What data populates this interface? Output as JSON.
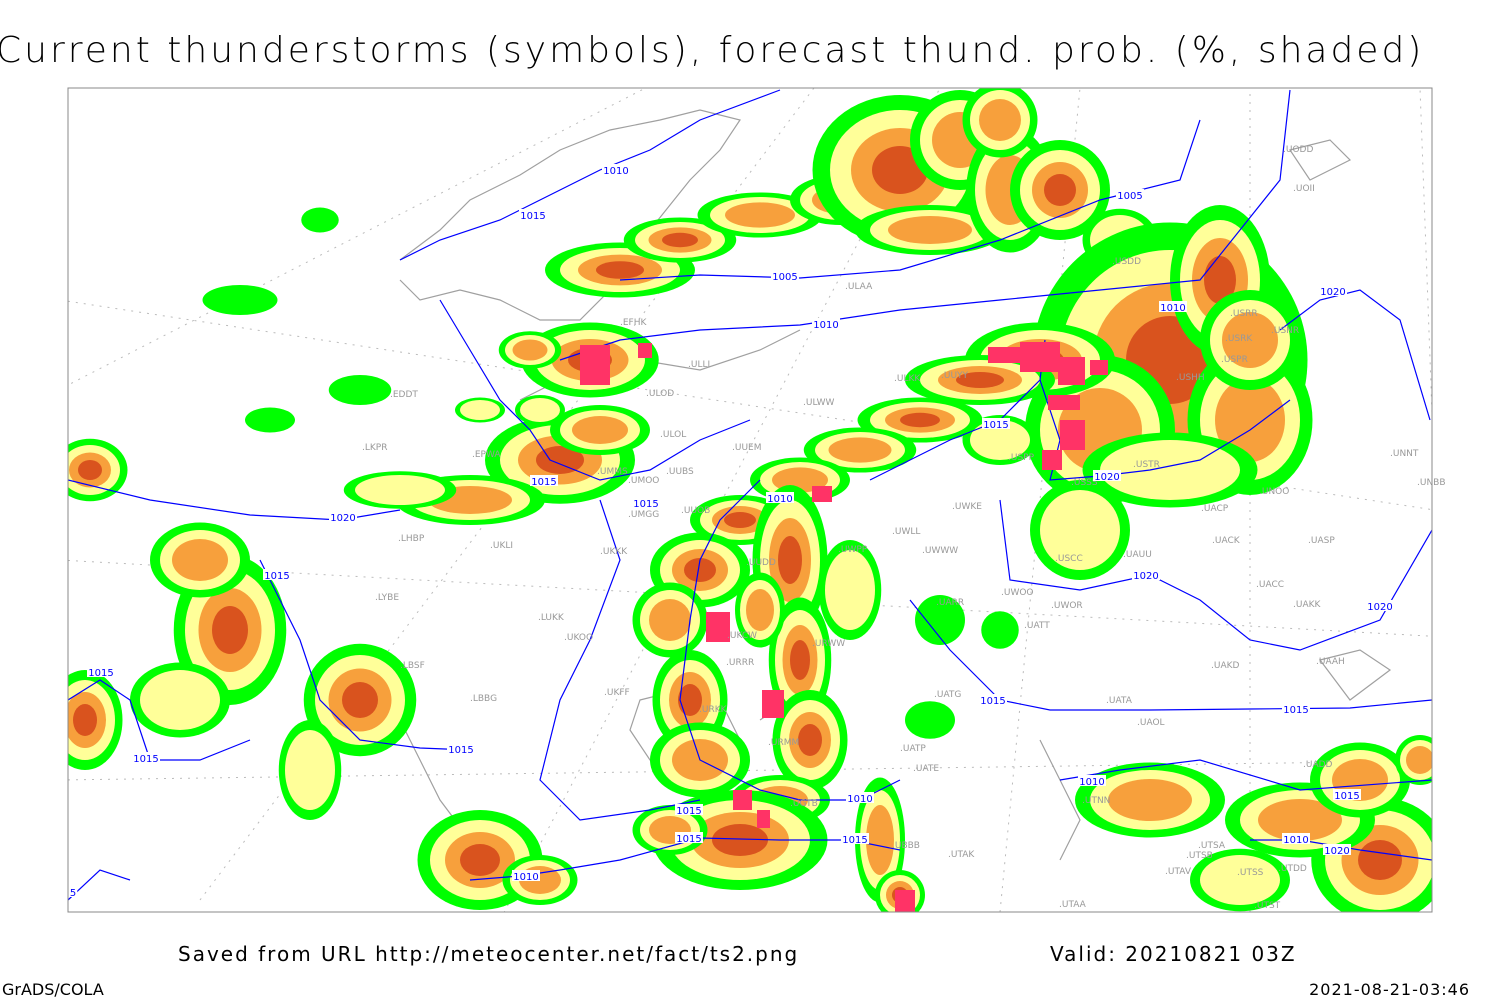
{
  "title": "Current thunderstorms (symbols), forecast thund. prob. (%, shaded)",
  "footer": {
    "saved": "Saved from URL http://meteocenter.net/fact/ts2.png",
    "valid": "Valid: 20210821 03Z",
    "software": "GrADS/COLA",
    "timestamp": "2021-08-21-03:46"
  },
  "colors": {
    "prob_low": "#00ff00",
    "prob_mid": "#ffff99",
    "prob_high": "#f7a03c",
    "prob_very_high": "#d9531e",
    "storm_symbol": "#ff3366",
    "isobar": "#0000ff",
    "coastline": "#a0a0a0"
  },
  "isobar_labels": [
    "1010",
    "1015",
    "1005",
    "1010",
    "1005",
    "1010",
    "1020",
    "1015",
    "1020",
    "1015",
    "1015",
    "1010",
    "1020",
    "1015",
    "1015",
    "1015",
    "1015",
    "1020",
    "1020",
    "1015",
    "1015",
    "1010",
    "1015",
    "1010",
    "1020",
    "1010",
    "1015",
    "1015",
    "1015",
    "1010",
    "5"
  ],
  "stations": [
    "EFHK",
    "ULLI",
    "ULOD",
    "ULOL",
    "EPWA",
    "EDDT",
    "UMMS",
    "UMOO",
    "UUBS",
    "UUEM",
    "ULWW",
    "ULKK",
    "ULAA",
    "UMGG",
    "UUOB",
    "UKKK",
    "UKLI",
    "LKPR",
    "LHBP",
    "LYBE",
    "LUKK",
    "UKOO",
    "LBSF",
    "LBBG",
    "UKFF",
    "URKK",
    "URRR",
    "UKCW",
    "UUDD",
    "UWWW",
    "UWLL",
    "UWKE",
    "UWPP",
    "URWW",
    "UATG",
    "UATT",
    "UWOO",
    "UWOR",
    "UARR",
    "USCC",
    "UAUU",
    "UACK",
    "UASP",
    "UACC",
    "UAKK",
    "UAKD",
    "UAAH",
    "UATA",
    "UAOL",
    "UADD",
    "UATP",
    "UATE",
    "URMM",
    "UGTB",
    "UTAK",
    "UTSA",
    "UTSB",
    "UTAV",
    "UTSS",
    "UTDD",
    "UTST",
    "UTAA",
    "UTNN",
    "UBBB",
    "UNNT",
    "UNBB",
    "UNOO",
    "UACP",
    "USTR",
    "USSS",
    "USPP",
    "USHH",
    "USPR",
    "USRK",
    "USNR",
    "USRR",
    "UUYY",
    "USDD",
    "UODD",
    "UOII"
  ]
}
